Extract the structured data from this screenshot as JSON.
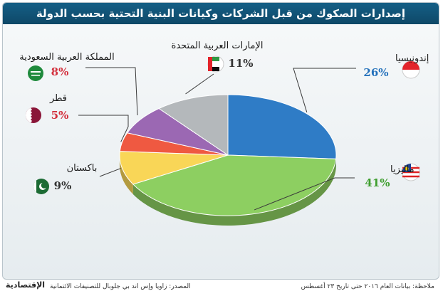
{
  "title": "إصدارات الصكوك من قبل الشركات وكيانات البنية التحتية بحسب الدولة",
  "chart_data": {
    "type": "pie",
    "title": "إصدارات الصكوك من قبل الشركات وكيانات البنية التحتية بحسب الدولة",
    "categories": [
      "إندونيسيا",
      "ماليزيا",
      "باكستان",
      "قطر",
      "المملكة العربية السعودية",
      "الإمارات العربية المتحدة"
    ],
    "values": [
      26,
      41,
      9,
      5,
      8,
      11
    ],
    "labels_pct": [
      "26%",
      "41%",
      "9%",
      "5%",
      "8%",
      "11%"
    ],
    "colors": [
      "#2f7cc6",
      "#8dcf61",
      "#f9d657",
      "#ef5941",
      "#9b68b3",
      "#b4b8bb"
    ],
    "pct_colors": [
      "#2471bb",
      "#3f9e2f",
      "#333333",
      "#d3303d",
      "#d3303d",
      "#333333"
    ]
  },
  "footer": {
    "note": "ملاحظة: بيانات العام ٢٠١٦ حتى تاريخ ٢٣ أغسطس",
    "source": "المصدر: زاويا  وإس اند بي جلوبال للتصنيفات الائتمانية",
    "logo": "الإقتصادية"
  }
}
